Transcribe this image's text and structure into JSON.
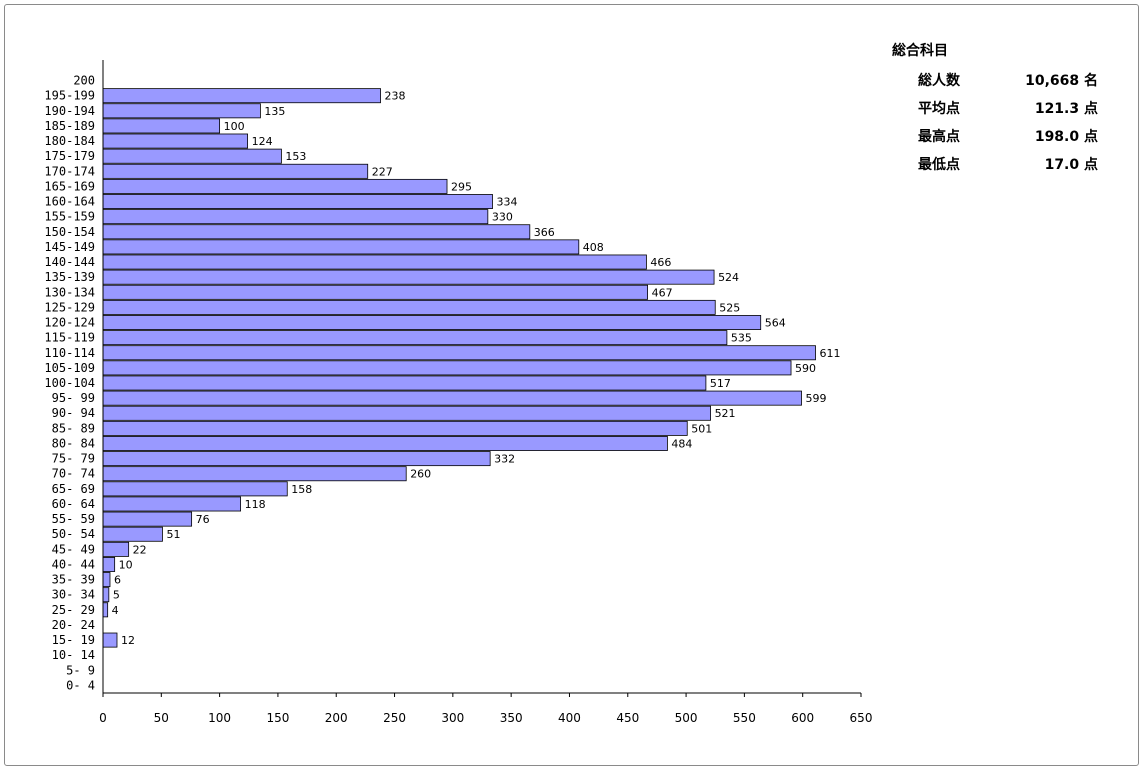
{
  "chart_data": {
    "type": "bar",
    "orientation": "horizontal",
    "title": "",
    "xlabel": "",
    "ylabel": "",
    "xlim": [
      0,
      650
    ],
    "x_ticks": [
      0,
      50,
      100,
      150,
      200,
      250,
      300,
      350,
      400,
      450,
      500,
      550,
      600,
      650
    ],
    "grid": false,
    "bar_color": "#9999ff",
    "categories": [
      "200",
      "195-199",
      "190-194",
      "185-189",
      "180-184",
      "175-179",
      "170-174",
      "165-169",
      "160-164",
      "155-159",
      "150-154",
      "145-149",
      "140-144",
      "135-139",
      "130-134",
      "125-129",
      "120-124",
      "115-119",
      "110-114",
      "105-109",
      "100-104",
      "95- 99",
      "90- 94",
      "85- 89",
      "80- 84",
      "75- 79",
      "70- 74",
      "65- 69",
      "60- 64",
      "55- 59",
      "50- 54",
      "45- 49",
      "40- 44",
      "35- 39",
      "30- 34",
      "25- 29",
      "20- 24",
      "15- 19",
      "10- 14",
      "5-  9",
      "0-  4"
    ],
    "values": [
      null,
      238,
      135,
      100,
      124,
      153,
      227,
      295,
      334,
      330,
      366,
      408,
      466,
      524,
      467,
      525,
      564,
      535,
      611,
      590,
      517,
      599,
      521,
      501,
      484,
      332,
      260,
      158,
      118,
      76,
      51,
      22,
      10,
      6,
      5,
      4,
      null,
      12,
      null,
      null,
      null
    ]
  },
  "stats": {
    "title": "総合科目",
    "rows": [
      {
        "label": "総人数",
        "value": "10,668 名"
      },
      {
        "label": "平均点",
        "value": "121.3 点"
      },
      {
        "label": "最高点",
        "value": "198.0 点"
      },
      {
        "label": "最低点",
        "value": "17.0 点"
      }
    ]
  }
}
